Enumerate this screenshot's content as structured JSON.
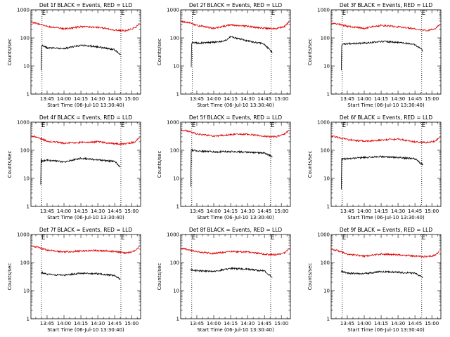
{
  "colors": {
    "events": "#000000",
    "lld": "#dd0000",
    "axes": "#000000",
    "background": "#ffffff"
  },
  "chart_data": [
    {
      "type": "line",
      "title": "Det 1f BLACK = Events, RED = LLD",
      "xlabel": "Start Time (06-Jul-10 13:30:40)",
      "ylabel": "Counts/sec",
      "yscale": "log",
      "ylim": [
        1,
        1000
      ],
      "xlim": [
        "13:30:40",
        "15:08:00"
      ],
      "yticks": [
        "1",
        "10",
        "100",
        "1000"
      ],
      "xticks": [
        "13:45",
        "14:00",
        "14:15",
        "14:30",
        "14:45",
        "15:00"
      ],
      "vlines": [
        "13:40:30",
        "14:50:30"
      ],
      "marker_labels": [
        "E",
        "E"
      ],
      "series": [
        {
          "color": "red",
          "x": [
            "13:30:40",
            "13:36",
            "13:45",
            "14:00",
            "14:15",
            "14:30",
            "14:45",
            "14:55",
            "15:03",
            "15:07"
          ],
          "values": [
            360,
            330,
            260,
            210,
            250,
            240,
            190,
            180,
            230,
            330
          ]
        },
        {
          "color": "black",
          "x": [
            "13:39:40",
            "13:40:00",
            "13:40:30",
            "13:45",
            "14:00",
            "14:15",
            "14:30",
            "14:45",
            "14:50"
          ],
          "values": [
            7,
            50,
            55,
            44,
            42,
            55,
            48,
            38,
            25
          ]
        }
      ]
    },
    {
      "type": "line",
      "title": "Det 2f BLACK = Events, RED = LLD",
      "xlabel": "Start Time (06-Jul-10 13:30:40)",
      "ylabel": "Counts/sec",
      "yscale": "log",
      "ylim": [
        1,
        1000
      ],
      "xlim": [
        "13:30:40",
        "15:08:00"
      ],
      "yticks": [
        "1",
        "10",
        "100",
        "1000"
      ],
      "xticks": [
        "13:45",
        "14:00",
        "14:15",
        "14:30",
        "14:45",
        "15:00"
      ],
      "vlines": [
        "13:41:00",
        "14:51:00"
      ],
      "marker_labels": [
        "E",
        "E"
      ],
      "series": [
        {
          "color": "red",
          "x": [
            "13:30:40",
            "13:37",
            "13:45",
            "14:00",
            "14:15",
            "14:30",
            "14:45",
            "14:55",
            "15:03",
            "15:07"
          ],
          "values": [
            380,
            360,
            280,
            220,
            290,
            260,
            220,
            210,
            260,
            380
          ]
        },
        {
          "color": "black",
          "x": [
            "13:40:00",
            "13:40:20",
            "13:41",
            "13:45",
            "14:00",
            "14:10",
            "14:15",
            "14:30",
            "14:45",
            "14:52"
          ],
          "values": [
            9,
            60,
            70,
            65,
            70,
            80,
            110,
            78,
            60,
            30
          ]
        }
      ]
    },
    {
      "type": "line",
      "title": "Det 3f BLACK = Events, RED = LLD",
      "xlabel": "Start Time (06-Jul-10 13:30:40)",
      "ylabel": "Counts/sec",
      "yscale": "log",
      "ylim": [
        1,
        1000
      ],
      "xlim": [
        "13:30:40",
        "15:08:00"
      ],
      "yticks": [
        "1",
        "10",
        "100",
        "1000"
      ],
      "xticks": [
        "13:45",
        "14:00",
        "14:15",
        "14:30",
        "14:45",
        "15:00"
      ],
      "vlines": [
        "13:40:30",
        "14:51:00"
      ],
      "marker_labels": [
        "E",
        "E"
      ],
      "series": [
        {
          "color": "red",
          "x": [
            "13:30:40",
            "13:36",
            "13:45",
            "14:00",
            "14:15",
            "14:30",
            "14:45",
            "14:55",
            "15:03",
            "15:07"
          ],
          "values": [
            350,
            320,
            260,
            220,
            280,
            250,
            210,
            180,
            210,
            300
          ]
        },
        {
          "color": "black",
          "x": [
            "13:39:40",
            "13:40:00",
            "13:41",
            "13:45",
            "14:00",
            "14:15",
            "14:30",
            "14:45",
            "14:52"
          ],
          "values": [
            7,
            55,
            60,
            62,
            65,
            75,
            70,
            58,
            35
          ]
        }
      ]
    },
    {
      "type": "line",
      "title": "Det 4f BLACK = Events, RED = LLD",
      "xlabel": "Start Time (06-Jul-10 13:30:40)",
      "ylabel": "Counts/sec",
      "yscale": "log",
      "ylim": [
        1,
        1000
      ],
      "xlim": [
        "13:30:40",
        "15:08:00"
      ],
      "yticks": [
        "1",
        "10",
        "100",
        "1000"
      ],
      "xticks": [
        "13:45",
        "14:00",
        "14:15",
        "14:30",
        "14:45",
        "15:00"
      ],
      "vlines": [
        "13:40:00",
        "14:50:30"
      ],
      "marker_labels": [
        "E",
        "E"
      ],
      "series": [
        {
          "color": "red",
          "x": [
            "13:30:40",
            "13:36",
            "13:45",
            "14:00",
            "14:15",
            "14:30",
            "14:45",
            "14:55",
            "15:03",
            "15:07"
          ],
          "values": [
            330,
            300,
            210,
            180,
            190,
            200,
            170,
            170,
            200,
            290
          ]
        },
        {
          "color": "black",
          "x": [
            "13:39:20",
            "13:39:40",
            "13:40",
            "13:45",
            "14:00",
            "14:15",
            "14:30",
            "14:45",
            "14:50"
          ],
          "values": [
            6,
            50,
            40,
            45,
            38,
            52,
            45,
            40,
            25
          ]
        }
      ]
    },
    {
      "type": "line",
      "title": "Det 5f BLACK = Events, RED = LLD",
      "xlabel": "Start Time (06-Jul-10 13:30:40)",
      "ylabel": "Counts/sec",
      "yscale": "log",
      "ylim": [
        1,
        1000
      ],
      "xlim": [
        "13:30:40",
        "15:08:00"
      ],
      "yticks": [
        "1",
        "10",
        "100",
        "1000"
      ],
      "xticks": [
        "13:45",
        "14:00",
        "14:15",
        "14:30",
        "14:45",
        "15:00"
      ],
      "vlines": [
        "13:40:30",
        "14:50:30"
      ],
      "marker_labels": [
        "E",
        "E"
      ],
      "series": [
        {
          "color": "red",
          "x": [
            "13:30:40",
            "13:36",
            "13:45",
            "14:00",
            "14:15",
            "14:30",
            "14:45",
            "14:55",
            "15:03",
            "15:07"
          ],
          "values": [
            520,
            500,
            380,
            320,
            360,
            380,
            310,
            300,
            380,
            520
          ]
        },
        {
          "color": "black",
          "x": [
            "13:39:40",
            "13:40:00",
            "13:41",
            "13:45",
            "14:00",
            "14:15",
            "14:30",
            "14:45",
            "14:52"
          ],
          "values": [
            5,
            110,
            100,
            95,
            88,
            90,
            85,
            80,
            60
          ]
        }
      ]
    },
    {
      "type": "line",
      "title": "Det 6f BLACK = Events, RED = LLD",
      "xlabel": "Start Time (06-Jul-10 13:30:40)",
      "ylabel": "Counts/sec",
      "yscale": "log",
      "ylim": [
        1,
        1000
      ],
      "xlim": [
        "13:30:40",
        "15:08:00"
      ],
      "yticks": [
        "1",
        "10",
        "100",
        "1000"
      ],
      "xticks": [
        "13:45",
        "14:00",
        "14:15",
        "14:30",
        "14:45",
        "15:00"
      ],
      "vlines": [
        "13:40:30",
        "14:51:00"
      ],
      "marker_labels": [
        "E",
        "E"
      ],
      "series": [
        {
          "color": "red",
          "x": [
            "13:30:40",
            "13:36",
            "13:45",
            "14:00",
            "14:15",
            "14:30",
            "14:45",
            "14:55",
            "15:03",
            "15:07"
          ],
          "values": [
            320,
            290,
            240,
            210,
            230,
            250,
            200,
            190,
            210,
            300
          ]
        },
        {
          "color": "black",
          "x": [
            "13:39:40",
            "13:40:00",
            "13:41",
            "13:45",
            "14:00",
            "14:15",
            "14:30",
            "14:45",
            "14:52"
          ],
          "values": [
            4,
            50,
            48,
            50,
            55,
            60,
            55,
            50,
            30
          ]
        }
      ]
    },
    {
      "type": "line",
      "title": "Det 7f BLACK = Events, RED = LLD",
      "xlabel": "Start Time (06-Jul-10 13:30:40)",
      "ylabel": "Counts/sec",
      "yscale": "log",
      "ylim": [
        1,
        1000
      ],
      "xlim": [
        "13:30:40",
        "15:08:00"
      ],
      "yticks": [
        "1",
        "10",
        "100",
        "1000"
      ],
      "xticks": [
        "13:45",
        "14:00",
        "14:15",
        "14:30",
        "14:45",
        "15:00"
      ],
      "vlines": [
        "13:40:00",
        "14:50:30"
      ],
      "marker_labels": [
        "E",
        "E"
      ],
      "series": [
        {
          "color": "red",
          "x": [
            "13:30:40",
            "13:36",
            "13:45",
            "14:00",
            "14:15",
            "14:30",
            "14:45",
            "14:55",
            "15:03",
            "15:07"
          ],
          "values": [
            380,
            360,
            280,
            240,
            260,
            270,
            250,
            220,
            260,
            380
          ]
        },
        {
          "color": "black",
          "x": [
            "13:39:40",
            "13:40:00",
            "13:45",
            "14:00",
            "14:15",
            "14:30",
            "14:45",
            "14:50"
          ],
          "values": [
            40,
            45,
            38,
            35,
            42,
            40,
            35,
            25
          ]
        }
      ]
    },
    {
      "type": "line",
      "title": "Det 8f BLACK = Events, RED = LLD",
      "xlabel": "Start Time (06-Jul-10 13:30:40)",
      "ylabel": "Counts/sec",
      "yscale": "log",
      "ylim": [
        1,
        1000
      ],
      "xlim": [
        "13:30:40",
        "15:08:00"
      ],
      "yticks": [
        "1",
        "10",
        "100",
        "1000"
      ],
      "xticks": [
        "13:45",
        "14:00",
        "14:15",
        "14:30",
        "14:45",
        "15:00"
      ],
      "vlines": [
        "13:40:30",
        "14:50:30"
      ],
      "marker_labels": [
        "E",
        "E"
      ],
      "series": [
        {
          "color": "red",
          "x": [
            "13:30:40",
            "13:36",
            "13:45",
            "14:00",
            "14:15",
            "14:30",
            "14:45",
            "14:55",
            "15:03",
            "15:07"
          ],
          "values": [
            330,
            300,
            240,
            210,
            250,
            240,
            200,
            190,
            220,
            330
          ]
        },
        {
          "color": "black",
          "x": [
            "13:39:40",
            "13:40:00",
            "13:45",
            "14:00",
            "14:15",
            "14:30",
            "14:45",
            "14:52"
          ],
          "values": [
            60,
            55,
            52,
            48,
            62,
            58,
            50,
            30
          ]
        }
      ]
    },
    {
      "type": "line",
      "title": "Det 9f BLACK = Events, RED = LLD",
      "xlabel": "Start Time (06-Jul-10 13:30:40)",
      "ylabel": "Counts/sec",
      "yscale": "log",
      "ylim": [
        1,
        1000
      ],
      "xlim": [
        "13:30:40",
        "15:08:00"
      ],
      "yticks": [
        "1",
        "10",
        "100",
        "1000"
      ],
      "xticks": [
        "13:45",
        "14:00",
        "14:15",
        "14:30",
        "14:45",
        "15:00"
      ],
      "vlines": [
        "13:40:30",
        "14:51:00"
      ],
      "marker_labels": [
        "E",
        "E"
      ],
      "series": [
        {
          "color": "red",
          "x": [
            "13:30:40",
            "13:36",
            "13:45",
            "14:00",
            "14:15",
            "14:30",
            "14:45",
            "14:55",
            "15:03",
            "15:07"
          ],
          "values": [
            300,
            270,
            200,
            170,
            200,
            190,
            170,
            160,
            180,
            260
          ]
        },
        {
          "color": "black",
          "x": [
            "13:39:40",
            "13:40:00",
            "13:45",
            "14:00",
            "14:15",
            "14:30",
            "14:45",
            "14:52"
          ],
          "values": [
            45,
            48,
            42,
            40,
            48,
            45,
            42,
            30
          ]
        }
      ]
    }
  ]
}
